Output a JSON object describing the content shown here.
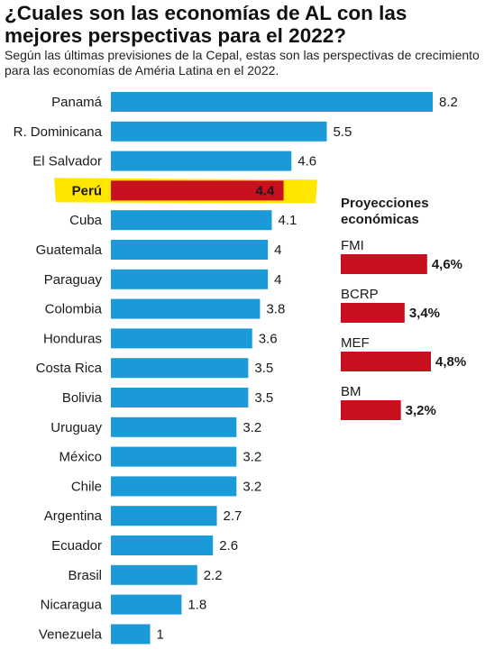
{
  "title": "¿Cuales son las economías de AL con las mejores perspectivas para el 2022?",
  "subtitle": "Según las últimas previsiones de la Cepal, estas son las perspectivas de crecimiento para las economías de Amériа Latina en el 2022.",
  "colors": {
    "bar": "#1a9ad8",
    "highlight_bar": "#c8101e",
    "highlight_band": "#ffe600",
    "projection_bar": "#c8101e"
  },
  "chart_data": [
    {
      "type": "bar",
      "orientation": "horizontal",
      "categories": [
        "Panamá",
        "R. Dominicana",
        "El Salvador",
        "Perú",
        "Cuba",
        "Guatemala",
        "Paraguay",
        "Colombia",
        "Honduras",
        "Costa Rica",
        "Bolivia",
        "Uruguay",
        "México",
        "Chile",
        "Argentina",
        "Ecuador",
        "Brasil",
        "Nicaragua",
        "Venezuela"
      ],
      "values": [
        8.2,
        5.5,
        4.6,
        4.4,
        4.1,
        4,
        4,
        3.8,
        3.6,
        3.5,
        3.5,
        3.2,
        3.2,
        3.2,
        2.7,
        2.6,
        2.2,
        1.8,
        1
      ],
      "value_labels": [
        "8.2",
        "5.5",
        "4.6",
        "4.4",
        "4.1",
        "4",
        "4",
        "3.8",
        "3.6",
        "3.5",
        "3.5",
        "3.2",
        "3.2",
        "3.2",
        "2.7",
        "2.6",
        "2.2",
        "1.8",
        "1"
      ],
      "highlight": "Perú",
      "xlim": [
        0,
        8.2
      ],
      "grid": false
    },
    {
      "type": "bar",
      "orientation": "horizontal",
      "title": "Proyecciones económicas",
      "categories": [
        "FMI",
        "BCRP",
        "MEF",
        "BM"
      ],
      "values": [
        4.6,
        3.4,
        4.8,
        3.2
      ],
      "value_labels": [
        "4,6%",
        "3,4%",
        "4,8%",
        "3,2%"
      ],
      "grid": false
    }
  ]
}
